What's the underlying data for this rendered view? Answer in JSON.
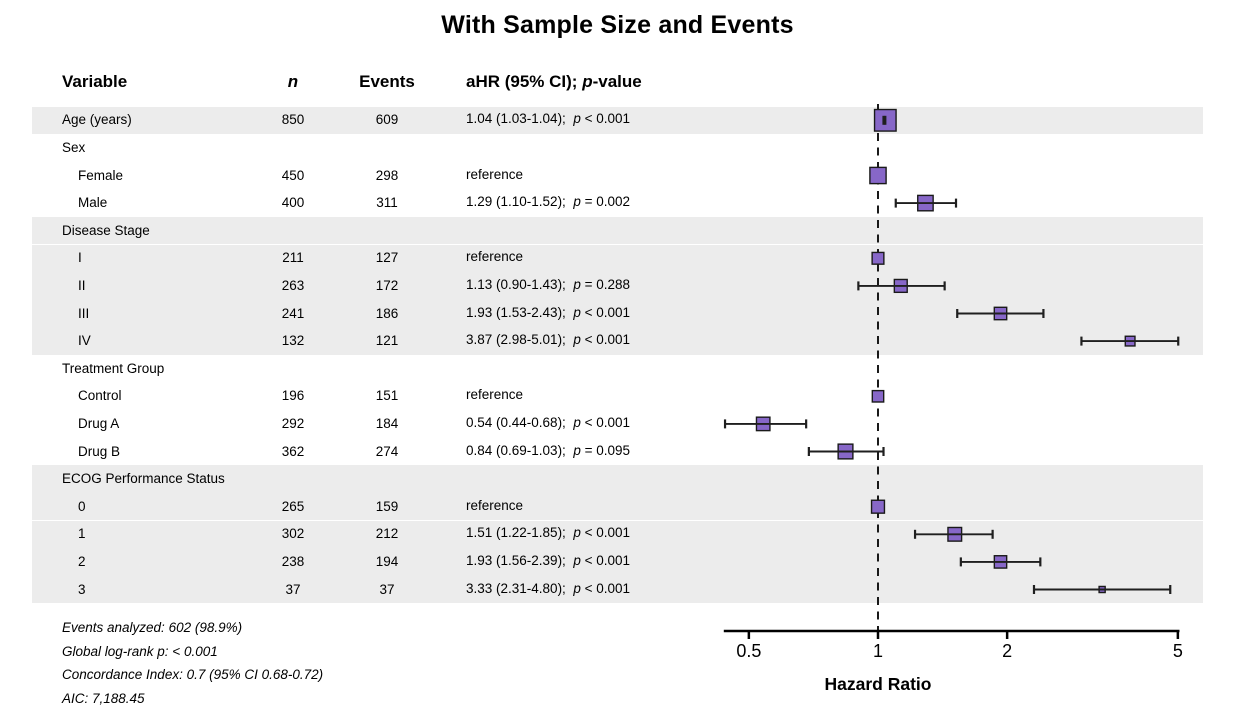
{
  "title": "With Sample Size and Events",
  "columns": {
    "variable": "Variable",
    "n": "n",
    "events": "Events",
    "ahr_prefix": "aHR (95% CI); ",
    "ahr_p": "p",
    "ahr_suffix": "-value"
  },
  "footer": [
    "Events analyzed: 602 (98.9%)",
    "Global log-rank p: < 0.001",
    "Concordance Index: 0.7 (95% CI 0.68-0.72)",
    "AIC: 7,188.45"
  ],
  "colors": {
    "marker_fill": "#8767C8",
    "marker_stroke": "#1a1a1a",
    "errorbar": "#1f1f1f",
    "band": "#ECECEC",
    "axis": "#000000",
    "text": "#000000"
  },
  "chart_data": {
    "type": "forest",
    "title": "With Sample Size and Events",
    "xlabel": "Hazard Ratio",
    "x_scale": "log",
    "x_range": [
      0.44,
      5.01
    ],
    "x_ticks": [
      0.5,
      1,
      2,
      5
    ],
    "x_tick_labels": [
      "0.5",
      "1",
      "2",
      "5"
    ],
    "reference_line": 1,
    "rows": [
      {
        "label": "Age (years)",
        "indent": 0,
        "group_header": false,
        "n": 850,
        "events": 609,
        "hr": 1.04,
        "ci_low": 1.03,
        "ci_high": 1.04,
        "estimate_text": "1.04 (1.03-1.04)",
        "p_text": "< 0.001",
        "reference": false,
        "shaded": true
      },
      {
        "label": "Sex",
        "indent": 0,
        "group_header": true,
        "shaded": false
      },
      {
        "label": "Female",
        "indent": 1,
        "group_header": false,
        "n": 450,
        "events": 298,
        "hr": 1.0,
        "estimate_text": "reference",
        "p_text": "",
        "reference": true,
        "shaded": false
      },
      {
        "label": "Male",
        "indent": 1,
        "group_header": false,
        "n": 400,
        "events": 311,
        "hr": 1.29,
        "ci_low": 1.1,
        "ci_high": 1.52,
        "estimate_text": "1.29 (1.10-1.52)",
        "p_text": "= 0.002",
        "reference": false,
        "shaded": false
      },
      {
        "label": "Disease Stage",
        "indent": 0,
        "group_header": true,
        "shaded": true
      },
      {
        "label": "I",
        "indent": 1,
        "group_header": false,
        "n": 211,
        "events": 127,
        "hr": 1.0,
        "estimate_text": "reference",
        "p_text": "",
        "reference": true,
        "shaded": true
      },
      {
        "label": "II",
        "indent": 1,
        "group_header": false,
        "n": 263,
        "events": 172,
        "hr": 1.13,
        "ci_low": 0.9,
        "ci_high": 1.43,
        "estimate_text": "1.13 (0.90-1.43)",
        "p_text": "= 0.288",
        "reference": false,
        "shaded": true
      },
      {
        "label": "III",
        "indent": 1,
        "group_header": false,
        "n": 241,
        "events": 186,
        "hr": 1.93,
        "ci_low": 1.53,
        "ci_high": 2.43,
        "estimate_text": "1.93 (1.53-2.43)",
        "p_text": "< 0.001",
        "reference": false,
        "shaded": true
      },
      {
        "label": "IV",
        "indent": 1,
        "group_header": false,
        "n": 132,
        "events": 121,
        "hr": 3.87,
        "ci_low": 2.98,
        "ci_high": 5.01,
        "estimate_text": "3.87 (2.98-5.01)",
        "p_text": "< 0.001",
        "reference": false,
        "shaded": true
      },
      {
        "label": "Treatment Group",
        "indent": 0,
        "group_header": true,
        "shaded": false
      },
      {
        "label": "Control",
        "indent": 1,
        "group_header": false,
        "n": 196,
        "events": 151,
        "hr": 1.0,
        "estimate_text": "reference",
        "p_text": "",
        "reference": true,
        "shaded": false
      },
      {
        "label": "Drug A",
        "indent": 1,
        "group_header": false,
        "n": 292,
        "events": 184,
        "hr": 0.54,
        "ci_low": 0.44,
        "ci_high": 0.68,
        "estimate_text": "0.54 (0.44-0.68)",
        "p_text": "< 0.001",
        "reference": false,
        "shaded": false
      },
      {
        "label": "Drug B",
        "indent": 1,
        "group_header": false,
        "n": 362,
        "events": 274,
        "hr": 0.84,
        "ci_low": 0.69,
        "ci_high": 1.03,
        "estimate_text": "0.84 (0.69-1.03)",
        "p_text": "= 0.095",
        "reference": false,
        "shaded": false
      },
      {
        "label": "ECOG Performance Status",
        "indent": 0,
        "group_header": true,
        "shaded": true
      },
      {
        "label": "0",
        "indent": 1,
        "group_header": false,
        "n": 265,
        "events": 159,
        "hr": 1.0,
        "estimate_text": "reference",
        "p_text": "",
        "reference": true,
        "shaded": true
      },
      {
        "label": "1",
        "indent": 1,
        "group_header": false,
        "n": 302,
        "events": 212,
        "hr": 1.51,
        "ci_low": 1.22,
        "ci_high": 1.85,
        "estimate_text": "1.51 (1.22-1.85)",
        "p_text": "< 0.001",
        "reference": false,
        "shaded": true
      },
      {
        "label": "2",
        "indent": 1,
        "group_header": false,
        "n": 238,
        "events": 194,
        "hr": 1.93,
        "ci_low": 1.56,
        "ci_high": 2.39,
        "estimate_text": "1.93 (1.56-2.39)",
        "p_text": "< 0.001",
        "reference": false,
        "shaded": true
      },
      {
        "label": "3",
        "indent": 1,
        "group_header": false,
        "n": 37,
        "events": 37,
        "hr": 3.33,
        "ci_low": 2.31,
        "ci_high": 4.8,
        "estimate_text": "3.33 (2.31-4.80)",
        "p_text": "< 0.001",
        "reference": false,
        "shaded": true
      }
    ]
  }
}
